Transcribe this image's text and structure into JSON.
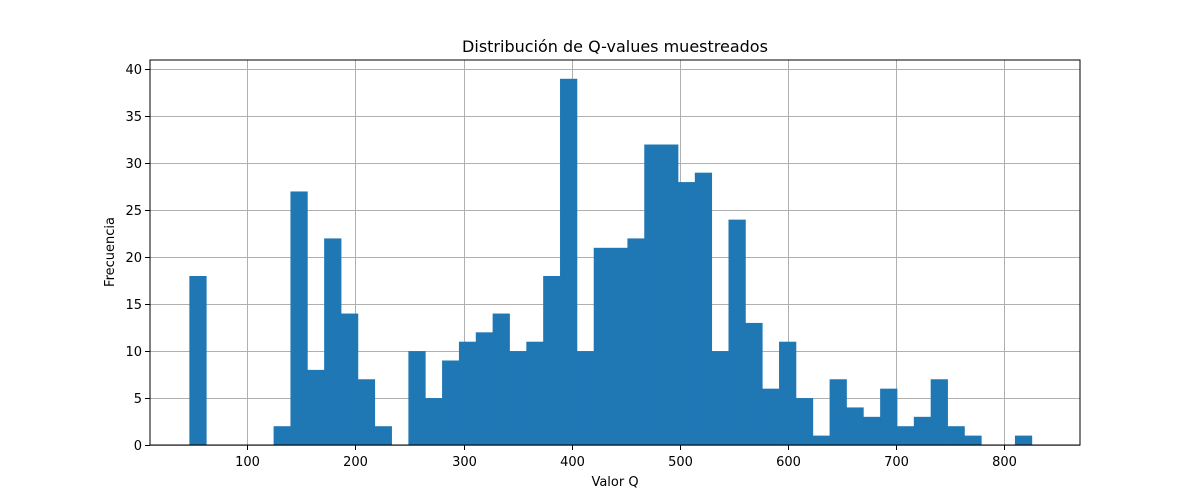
{
  "chart_data": {
    "type": "bar",
    "title": "Distribución de Q-values muestreados",
    "xlabel": "Valor Q",
    "ylabel": "Frecuencia",
    "xlim": [
      10,
      870
    ],
    "ylim": [
      0,
      41
    ],
    "xticks": [
      100,
      200,
      300,
      400,
      500,
      600,
      700,
      800
    ],
    "yticks": [
      0,
      5,
      10,
      15,
      20,
      25,
      30,
      35,
      40
    ],
    "grid": true,
    "color": "#1f77b4",
    "bin_start": 46.4,
    "bin_width": 15.58,
    "values": [
      18,
      0,
      0,
      0,
      0,
      2,
      27,
      8,
      22,
      14,
      7,
      2,
      0,
      10,
      5,
      9,
      11,
      12,
      14,
      10,
      11,
      18,
      39,
      10,
      21,
      21,
      22,
      32,
      32,
      28,
      29,
      10,
      24,
      13,
      6,
      11,
      5,
      1,
      7,
      4,
      3,
      6,
      2,
      3,
      7,
      2,
      1,
      0,
      0,
      1
    ]
  }
}
